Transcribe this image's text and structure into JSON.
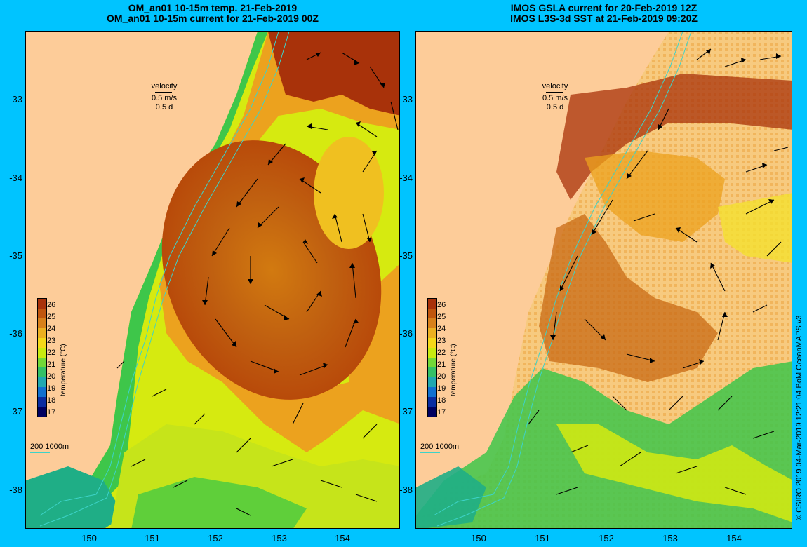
{
  "left_panel": {
    "title_line1": "OM_an01 10-15m temp. 21-Feb-2019",
    "title_line2": "OM_an01 10-15m current for 21-Feb-2019 00Z"
  },
  "right_panel": {
    "title_line1": "IMOS GSLA current for 20-Feb-2019 12Z",
    "title_line2": "IMOS L3S-3d SST at 21-Feb-2019 09:20Z"
  },
  "axes": {
    "y_ticks": [
      "-33",
      "-34",
      "-35",
      "-36",
      "-37",
      "-38"
    ],
    "x_ticks": [
      "150",
      "151",
      "152",
      "153",
      "154"
    ]
  },
  "velocity_legend": {
    "label": "velocity",
    "speed": "0.5 m/s",
    "time": "0.5 d"
  },
  "colorbar": {
    "unit": "temperature (°C)",
    "labels": [
      "26",
      "25",
      "24",
      "23",
      "22",
      "21",
      "20",
      "19",
      "18",
      "17"
    ],
    "colors": [
      "#b03a0a",
      "#d0700e",
      "#e89a20",
      "#f4c020",
      "#e8f000",
      "#a8e820",
      "#3ccc3c",
      "#20b0a0",
      "#1060d0",
      "#0a2080",
      "#000060",
      "#00003c"
    ]
  },
  "isobath_legend": {
    "labels": "200   1000m"
  },
  "copyright": "© CSIRO 2019  04-Mar-2019 12:21:04 BoM OceanMAPS v3",
  "colors": {
    "background": "#00c4ff",
    "land": "#fdcc99",
    "isobath": "#3dd3c8"
  }
}
